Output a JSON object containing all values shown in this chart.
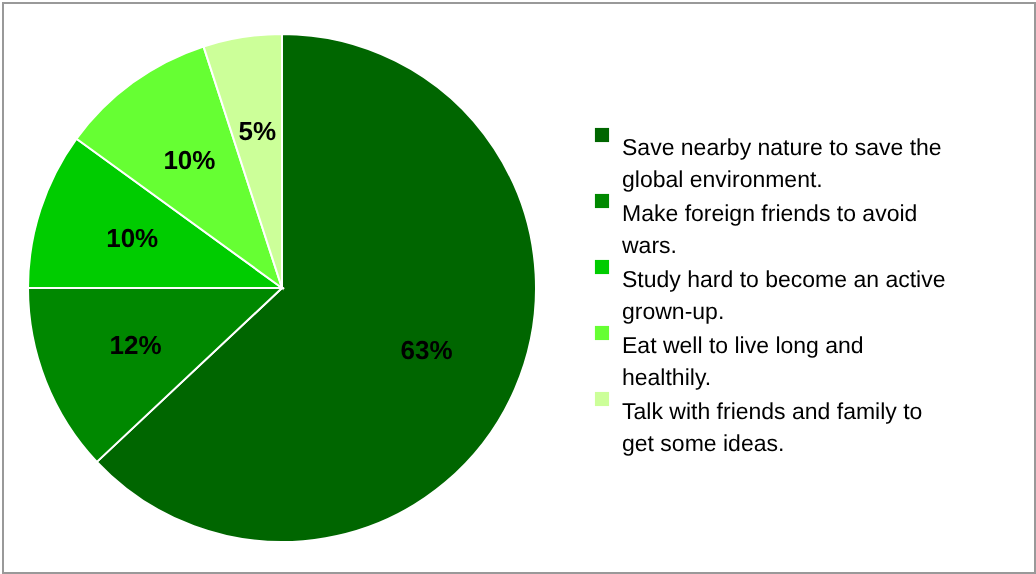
{
  "chart_data": {
    "type": "pie",
    "categories": [
      "Save nearby nature to save the global environment.",
      "Make foreign friends to avoid wars.",
      "Study hard to become an active grown-up.",
      "Eat well to live long and healthily.",
      "Talk with friends and family to get some ideas."
    ],
    "values": [
      63,
      12,
      10,
      10,
      5
    ],
    "value_labels": [
      "63%",
      "12%",
      "10%",
      "10%",
      "5%"
    ],
    "colors": [
      "#006600",
      "#008800",
      "#00cc00",
      "#66ff33",
      "#ccff99"
    ],
    "legend": "right"
  }
}
